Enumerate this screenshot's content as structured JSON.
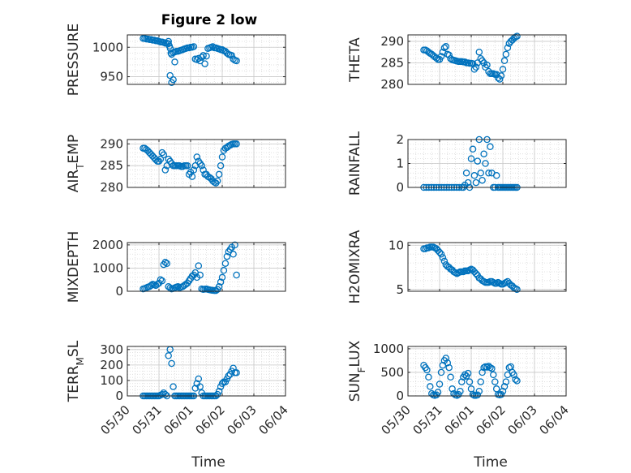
{
  "figure": {
    "title": "Figure 2 low",
    "marker_color": "#0072BD",
    "xlabel": "Time",
    "x_tick_labels": [
      "05/30",
      "05/31",
      "06/01",
      "06/02",
      "06/03",
      "06/04"
    ],
    "grid": "major and minor, dotted"
  },
  "chart_data": [
    {
      "type": "scatter",
      "id": "pressure",
      "ylabel": "PRESSURE",
      "ylim": [
        937,
        1021
      ],
      "yticks": [
        950,
        1000
      ],
      "xlim": [
        0,
        5
      ],
      "x": [
        0.5,
        0.55,
        0.6,
        0.65,
        0.7,
        0.75,
        0.8,
        0.85,
        0.9,
        0.95,
        1.0,
        1.05,
        1.1,
        1.15,
        1.2,
        1.25,
        1.3,
        1.35,
        1.4,
        1.45,
        1.5,
        1.3,
        1.33,
        1.36,
        1.38,
        1.4,
        1.45,
        1.5,
        1.55,
        1.6,
        1.65,
        1.7,
        1.75,
        1.8,
        1.85,
        1.9,
        1.95,
        2.0,
        2.05,
        2.1,
        2.15,
        2.2,
        2.25,
        2.3,
        2.35,
        2.4,
        2.45,
        2.5,
        2.55,
        2.6,
        2.65,
        2.7,
        2.75,
        2.8,
        2.85,
        2.9,
        2.95,
        3.0,
        3.05,
        3.1,
        3.15,
        3.2,
        3.25,
        3.3,
        3.35,
        3.4,
        3.45
      ],
      "y": [
        1015,
        1015,
        1014,
        1014,
        1013,
        1013,
        1012,
        1012,
        1011,
        1011,
        1010,
        1009,
        1009,
        1008,
        1007,
        1007,
        1010,
        952,
        940,
        945,
        975,
        1006,
        1002,
        998,
        990,
        988,
        991,
        992,
        993,
        993,
        994,
        995,
        996,
        997,
        998,
        999,
        999,
        1000,
        1000,
        1001,
        980,
        979,
        981,
        977,
        983,
        986,
        972,
        985,
        998,
        999,
        1000,
        1001,
        999,
        999,
        998,
        997,
        996,
        996,
        994,
        993,
        990,
        988,
        987,
        986,
        980,
        978,
        977
      ]
    },
    {
      "type": "scatter",
      "id": "theta",
      "ylabel": "THETA",
      "ylim": [
        280,
        291.5
      ],
      "yticks": [
        280,
        285,
        290
      ],
      "xlim": [
        0,
        5
      ],
      "x": [
        0.5,
        0.55,
        0.6,
        0.65,
        0.7,
        0.75,
        0.8,
        0.85,
        0.9,
        0.95,
        1.0,
        1.05,
        1.1,
        1.15,
        1.2,
        1.25,
        1.3,
        1.35,
        1.4,
        1.45,
        1.5,
        1.55,
        1.6,
        1.65,
        1.7,
        1.75,
        1.8,
        1.85,
        1.9,
        1.95,
        2.0,
        2.05,
        2.1,
        2.15,
        2.2,
        2.25,
        2.3,
        2.35,
        2.4,
        2.45,
        2.5,
        2.55,
        2.6,
        2.65,
        2.7,
        2.75,
        2.8,
        2.85,
        2.9,
        2.95,
        3.0,
        3.05,
        3.1,
        3.15,
        3.2,
        3.25,
        3.3,
        3.35,
        3.4,
        3.45
      ],
      "y": [
        288,
        288,
        287.8,
        287.5,
        287.2,
        287,
        286.7,
        286.4,
        286.1,
        285.8,
        285.8,
        286.5,
        287.5,
        288.5,
        288.8,
        287,
        286.8,
        286,
        285.7,
        285.6,
        285.5,
        285.4,
        285.3,
        285.3,
        285.3,
        285.2,
        285.2,
        285,
        285,
        284.9,
        284.9,
        284.8,
        283.5,
        284,
        285,
        287.5,
        286,
        285.5,
        285,
        284,
        284.5,
        283,
        282.5,
        282.5,
        282.5,
        282.3,
        282.3,
        281.5,
        281.2,
        282,
        283.5,
        285.5,
        287,
        288.5,
        289.5,
        290,
        290.3,
        290.7,
        291,
        291.2
      ]
    },
    {
      "type": "scatter",
      "id": "air_temp",
      "ylabel": "AIR_TEMP",
      "ylim": [
        280,
        291
      ],
      "yticks": [
        280,
        285,
        290
      ],
      "xlim": [
        0,
        5
      ],
      "x": [
        0.5,
        0.55,
        0.6,
        0.65,
        0.7,
        0.75,
        0.8,
        0.85,
        0.9,
        0.95,
        1.0,
        1.05,
        1.1,
        1.15,
        1.2,
        1.25,
        1.3,
        1.35,
        1.4,
        1.45,
        1.5,
        1.55,
        1.6,
        1.65,
        1.7,
        1.75,
        1.8,
        1.85,
        1.9,
        1.95,
        2.0,
        2.05,
        2.1,
        2.15,
        2.2,
        2.25,
        2.3,
        2.35,
        2.4,
        2.45,
        2.5,
        2.55,
        2.6,
        2.65,
        2.7,
        2.75,
        2.8,
        2.85,
        2.9,
        2.95,
        3.0,
        3.05,
        3.1,
        3.15,
        3.2,
        3.25,
        3.3,
        3.35,
        3.4,
        3.45
      ],
      "y": [
        289,
        289,
        288.7,
        288.4,
        288,
        287.6,
        287.2,
        286.8,
        286.4,
        286,
        286,
        286.5,
        288,
        287.5,
        284,
        285,
        286.5,
        286,
        285.5,
        285,
        285,
        285,
        285,
        285,
        284.8,
        284.8,
        285,
        285,
        285,
        283,
        283.5,
        282.5,
        284,
        285,
        287,
        286,
        285.5,
        285,
        284,
        283,
        283,
        282.5,
        282.3,
        282,
        281.5,
        281.2,
        281,
        281.5,
        283,
        285,
        287,
        288.5,
        289,
        289.2,
        289.5,
        289.7,
        289.9,
        290,
        290,
        290
      ]
    },
    {
      "type": "scatter",
      "id": "rainfall",
      "ylabel": "RAINFALL",
      "ylim": [
        0,
        2
      ],
      "yticks": [
        0,
        1,
        2
      ],
      "xlim": [
        0,
        5
      ],
      "x": [
        0.5,
        0.58,
        0.66,
        0.74,
        0.82,
        0.9,
        0.98,
        1.06,
        1.14,
        1.22,
        1.3,
        1.38,
        1.46,
        1.54,
        1.62,
        1.7,
        1.75,
        1.8,
        1.85,
        1.9,
        1.95,
        2.0,
        2.05,
        2.1,
        2.15,
        2.2,
        2.25,
        2.3,
        2.35,
        2.4,
        2.45,
        2.5,
        2.55,
        2.6,
        2.65,
        2.7,
        2.75,
        2.8,
        2.85,
        2.9,
        2.95,
        3.0,
        3.05,
        3.1,
        3.15,
        3.2,
        3.25,
        3.3,
        3.35,
        3.4,
        3.45
      ],
      "y": [
        0,
        0,
        0,
        0,
        0,
        0,
        0,
        0,
        0,
        0,
        0,
        0,
        0,
        0,
        0,
        0,
        0,
        0.1,
        0.6,
        0.2,
        0,
        1.2,
        1.6,
        0.5,
        0.2,
        1.1,
        2.0,
        0.6,
        0.3,
        1.4,
        1.0,
        2.0,
        0.6,
        1.7,
        0.6,
        0,
        0,
        0.5,
        0,
        0,
        0,
        0,
        0,
        0,
        0,
        0,
        0,
        0,
        0,
        0,
        0
      ]
    },
    {
      "type": "scatter",
      "id": "mixdepth",
      "ylabel": "MIXDEPTH",
      "ylim": [
        0,
        2100
      ],
      "yticks": [
        0,
        1000,
        2000
      ],
      "xlim": [
        0,
        5
      ],
      "x": [
        0.5,
        0.55,
        0.6,
        0.65,
        0.7,
        0.75,
        0.8,
        0.85,
        0.9,
        0.95,
        1.0,
        1.05,
        1.1,
        1.15,
        1.2,
        1.25,
        1.3,
        1.35,
        1.4,
        1.45,
        1.5,
        1.55,
        1.6,
        1.65,
        1.7,
        1.75,
        1.8,
        1.85,
        1.9,
        1.95,
        2.0,
        2.05,
        2.1,
        2.15,
        2.2,
        2.25,
        2.3,
        2.35,
        2.4,
        2.45,
        2.5,
        2.55,
        2.6,
        2.65,
        2.7,
        2.75,
        2.8,
        2.85,
        2.9,
        2.95,
        3.0,
        3.05,
        3.1,
        3.15,
        3.2,
        3.25,
        3.3,
        3.35,
        3.4,
        3.45
      ],
      "y": [
        100,
        120,
        150,
        180,
        200,
        250,
        300,
        280,
        250,
        300,
        350,
        500,
        450,
        1150,
        1250,
        1200,
        200,
        150,
        100,
        120,
        150,
        180,
        200,
        150,
        180,
        200,
        250,
        300,
        350,
        450,
        550,
        650,
        700,
        800,
        600,
        1100,
        700,
        100,
        80,
        90,
        100,
        80,
        60,
        50,
        40,
        30,
        30,
        80,
        200,
        400,
        600,
        900,
        1200,
        1500,
        1700,
        1800,
        1900,
        1600,
        2000,
        700
      ]
    },
    {
      "type": "scatter",
      "id": "h2omixra",
      "ylabel": "H2OMIXRA",
      "ylim": [
        4.8,
        10.3
      ],
      "yticks": [
        5,
        10
      ],
      "xlim": [
        0,
        5
      ],
      "x": [
        0.5,
        0.55,
        0.6,
        0.65,
        0.7,
        0.75,
        0.8,
        0.85,
        0.9,
        0.95,
        1.0,
        1.05,
        1.1,
        1.15,
        1.2,
        1.25,
        1.3,
        1.35,
        1.4,
        1.45,
        1.5,
        1.55,
        1.6,
        1.65,
        1.7,
        1.75,
        1.8,
        1.85,
        1.9,
        1.95,
        2.0,
        2.05,
        2.1,
        2.15,
        2.2,
        2.25,
        2.3,
        2.35,
        2.4,
        2.45,
        2.5,
        2.55,
        2.6,
        2.65,
        2.7,
        2.75,
        2.8,
        2.85,
        2.9,
        2.95,
        3.0,
        3.05,
        3.1,
        3.15,
        3.2,
        3.25,
        3.3,
        3.35,
        3.4,
        3.45
      ],
      "y": [
        9.6,
        9.6,
        9.7,
        9.7,
        9.8,
        9.8,
        9.8,
        9.7,
        9.6,
        9.4,
        9.2,
        9.0,
        8.6,
        8.2,
        7.8,
        7.6,
        7.5,
        7.3,
        7.2,
        7.0,
        6.9,
        6.8,
        6.9,
        7.0,
        7.0,
        7.0,
        7.1,
        7.1,
        7.1,
        7.2,
        7.3,
        7.2,
        7.0,
        6.8,
        6.6,
        6.3,
        6.2,
        6.0,
        5.9,
        5.8,
        5.8,
        5.8,
        5.9,
        5.9,
        5.8,
        5.7,
        5.7,
        5.8,
        5.7,
        5.6,
        5.6,
        5.7,
        5.8,
        5.9,
        5.7,
        5.5,
        5.4,
        5.2,
        5.1,
        5.0
      ]
    },
    {
      "type": "scatter",
      "id": "terr_msl",
      "ylabel": "TERR_MSL",
      "ylim": [
        0,
        320
      ],
      "yticks": [
        0,
        100,
        200,
        300
      ],
      "xlim": [
        0,
        5
      ],
      "x": [
        0.5,
        0.55,
        0.6,
        0.65,
        0.7,
        0.75,
        0.8,
        0.85,
        0.9,
        0.95,
        1.0,
        1.05,
        1.1,
        1.15,
        1.2,
        1.25,
        1.3,
        1.35,
        1.4,
        1.45,
        1.5,
        1.55,
        1.6,
        1.65,
        1.7,
        1.75,
        1.8,
        1.85,
        1.9,
        1.95,
        2.0,
        2.05,
        2.1,
        2.15,
        2.2,
        2.25,
        2.3,
        2.35,
        2.4,
        2.45,
        2.5,
        2.55,
        2.6,
        2.65,
        2.7,
        2.75,
        2.8,
        2.85,
        2.9,
        2.95,
        3.0,
        3.05,
        3.1,
        3.15,
        3.2,
        3.25,
        3.3,
        3.35,
        3.4,
        3.45
      ],
      "y": [
        0,
        0,
        0,
        0,
        0,
        0,
        0,
        0,
        0,
        0,
        0,
        5,
        10,
        20,
        10,
        0,
        260,
        300,
        210,
        60,
        0,
        0,
        0,
        0,
        0,
        0,
        0,
        0,
        0,
        0,
        0,
        0,
        0,
        50,
        80,
        110,
        60,
        20,
        0,
        0,
        0,
        0,
        0,
        0,
        0,
        0,
        0,
        10,
        30,
        60,
        80,
        90,
        90,
        110,
        130,
        140,
        160,
        180,
        150,
        150
      ]
    },
    {
      "type": "scatter",
      "id": "sun_flux",
      "ylabel": "SUN_FLUX",
      "ylim": [
        0,
        1050
      ],
      "yticks": [
        0,
        500,
        1000
      ],
      "xlim": [
        0,
        5
      ],
      "x": [
        0.5,
        0.55,
        0.6,
        0.65,
        0.7,
        0.75,
        0.8,
        0.85,
        0.9,
        0.95,
        1.0,
        1.05,
        1.1,
        1.15,
        1.2,
        1.25,
        1.3,
        1.35,
        1.4,
        1.45,
        1.5,
        1.55,
        1.6,
        1.65,
        1.7,
        1.75,
        1.8,
        1.85,
        1.9,
        1.95,
        2.0,
        2.05,
        2.1,
        2.15,
        2.2,
        2.25,
        2.3,
        2.35,
        2.4,
        2.45,
        2.5,
        2.55,
        2.6,
        2.65,
        2.7,
        2.75,
        2.8,
        2.85,
        2.9,
        2.95,
        3.0,
        3.05,
        3.1,
        3.15,
        3.2,
        3.25,
        3.3,
        3.35,
        3.4,
        3.45
      ],
      "y": [
        650,
        600,
        550,
        400,
        200,
        50,
        20,
        10,
        20,
        80,
        250,
        500,
        650,
        750,
        800,
        700,
        600,
        400,
        150,
        50,
        20,
        10,
        30,
        100,
        300,
        400,
        450,
        420,
        480,
        300,
        150,
        30,
        10,
        10,
        20,
        100,
        300,
        500,
        600,
        620,
        610,
        630,
        600,
        580,
        450,
        300,
        150,
        30,
        20,
        30,
        100,
        200,
        300,
        450,
        600,
        620,
        500,
        450,
        350,
        320
      ]
    }
  ]
}
